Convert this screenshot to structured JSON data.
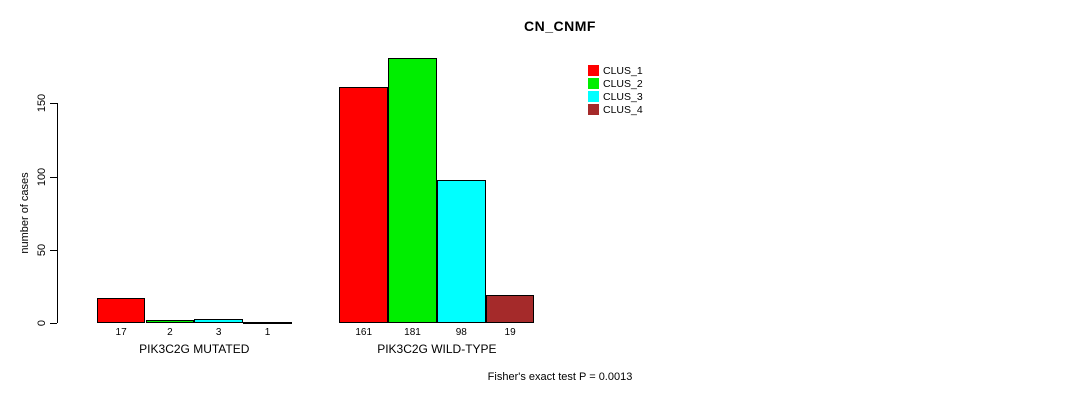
{
  "title": "CN_CNMF",
  "footer": "Fisher's exact test P = 0.0013",
  "y_axis": {
    "label": "number of cases",
    "ticks": [
      0,
      50,
      100,
      150
    ]
  },
  "legend": {
    "items": [
      {
        "label": "CLUS_1",
        "color": "#FF0000"
      },
      {
        "label": "CLUS_2",
        "color": "#00EE00"
      },
      {
        "label": "CLUS_3",
        "color": "#00FFFF"
      },
      {
        "label": "CLUS_4",
        "color": "#A52A2A"
      }
    ]
  },
  "chart_data": {
    "type": "bar",
    "title": "CN_CNMF",
    "ylabel": "number of cases",
    "xlabel": "",
    "categories": [
      "PIK3C2G MUTATED",
      "PIK3C2G WILD-TYPE"
    ],
    "series": [
      {
        "name": "CLUS_1",
        "color": "#FF0000",
        "values": [
          17,
          161
        ]
      },
      {
        "name": "CLUS_2",
        "color": "#00EE00",
        "values": [
          2,
          181
        ]
      },
      {
        "name": "CLUS_3",
        "color": "#00FFFF",
        "values": [
          3,
          98
        ]
      },
      {
        "name": "CLUS_4",
        "color": "#A52A2A",
        "values": [
          1,
          19
        ]
      }
    ],
    "bar_value_labels": [
      [
        17,
        2,
        3,
        1
      ],
      [
        161,
        181,
        98,
        19
      ]
    ],
    "yticks": [
      0,
      50,
      100,
      150
    ],
    "ylim": [
      0,
      185
    ],
    "grid": false,
    "legend_position": "inside-top-right",
    "annotation": "Fisher's exact test P = 0.0013"
  }
}
